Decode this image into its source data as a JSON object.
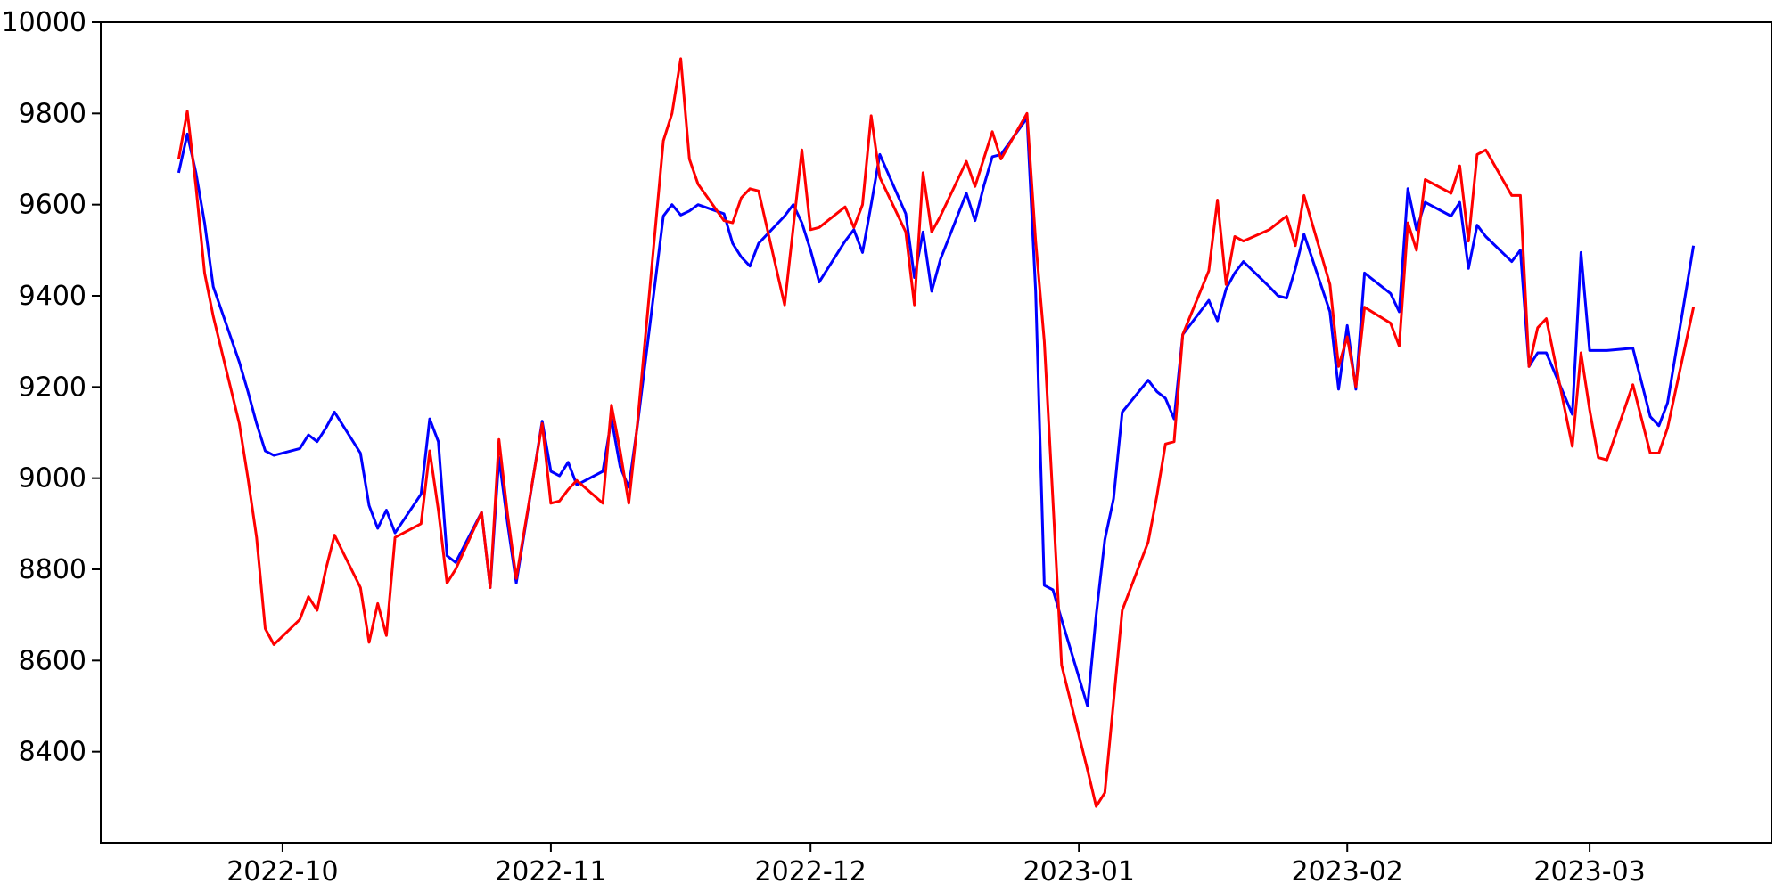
{
  "chart_data": {
    "type": "line",
    "title": "",
    "xlabel": "",
    "ylabel": "",
    "grid": false,
    "legend_position": "none",
    "background_color": "#ffffff",
    "axis_color": "#000000",
    "ylim": [
      8200,
      10000
    ],
    "y_ticks": [
      8400,
      8600,
      8800,
      9000,
      9200,
      9400,
      9600,
      9800,
      10000
    ],
    "xlim": [
      "2022-09-10",
      "2023-03-22"
    ],
    "x_ticks": [
      "2022-10-01",
      "2022-11-01",
      "2022-12-01",
      "2023-01-01",
      "2023-02-01",
      "2023-03-01"
    ],
    "x_tick_labels": [
      "2022-10",
      "2022-11",
      "2022-12",
      "2023-01",
      "2023-02",
      "2023-03"
    ],
    "x": [
      "2022-09-19",
      "2022-09-20",
      "2022-09-21",
      "2022-09-22",
      "2022-09-23",
      "2022-09-26",
      "2022-09-27",
      "2022-09-28",
      "2022-09-29",
      "2022-09-30",
      "2022-10-03",
      "2022-10-04",
      "2022-10-05",
      "2022-10-06",
      "2022-10-07",
      "2022-10-10",
      "2022-10-11",
      "2022-10-12",
      "2022-10-13",
      "2022-10-14",
      "2022-10-17",
      "2022-10-18",
      "2022-10-19",
      "2022-10-20",
      "2022-10-21",
      "2022-10-24",
      "2022-10-25",
      "2022-10-26",
      "2022-10-27",
      "2022-10-28",
      "2022-10-31",
      "2022-11-01",
      "2022-11-02",
      "2022-11-03",
      "2022-11-04",
      "2022-11-07",
      "2022-11-08",
      "2022-11-09",
      "2022-11-10",
      "2022-11-11",
      "2022-11-14",
      "2022-11-15",
      "2022-11-16",
      "2022-11-17",
      "2022-11-18",
      "2022-11-21",
      "2022-11-22",
      "2022-11-23",
      "2022-11-24",
      "2022-11-25",
      "2022-11-28",
      "2022-11-29",
      "2022-11-30",
      "2022-12-01",
      "2022-12-02",
      "2022-12-05",
      "2022-12-06",
      "2022-12-07",
      "2022-12-08",
      "2022-12-09",
      "2022-12-12",
      "2022-12-13",
      "2022-12-14",
      "2022-12-15",
      "2022-12-16",
      "2022-12-19",
      "2022-12-20",
      "2022-12-21",
      "2022-12-22",
      "2022-12-23",
      "2022-12-26",
      "2022-12-27",
      "2022-12-28",
      "2022-12-29",
      "2022-12-30",
      "2023-01-02",
      "2023-01-03",
      "2023-01-04",
      "2023-01-05",
      "2023-01-06",
      "2023-01-09",
      "2023-01-10",
      "2023-01-11",
      "2023-01-12",
      "2023-01-13",
      "2023-01-16",
      "2023-01-17",
      "2023-01-18",
      "2023-01-19",
      "2023-01-20",
      "2023-01-23",
      "2023-01-24",
      "2023-01-25",
      "2023-01-26",
      "2023-01-27",
      "2023-01-30",
      "2023-01-31",
      "2023-02-01",
      "2023-02-02",
      "2023-02-03",
      "2023-02-06",
      "2023-02-07",
      "2023-02-08",
      "2023-02-09",
      "2023-02-10",
      "2023-02-13",
      "2023-02-14",
      "2023-02-15",
      "2023-02-16",
      "2023-02-17",
      "2023-02-20",
      "2023-02-21",
      "2023-02-22",
      "2023-02-23",
      "2023-02-24",
      "2023-02-27",
      "2023-02-28",
      "2023-03-01",
      "2023-03-02",
      "2023-03-03",
      "2023-03-06",
      "2023-03-07",
      "2023-03-08",
      "2023-03-09",
      "2023-03-10",
      "2023-03-13"
    ],
    "series": [
      {
        "name": "series-blue",
        "color": "#0000ff",
        "values": [
          9670,
          9755,
          9670,
          9560,
          9420,
          9255,
          9190,
          9120,
          9060,
          9050,
          9065,
          9095,
          9080,
          9110,
          9145,
          9055,
          8940,
          8890,
          8930,
          8880,
          8965,
          9130,
          9080,
          8830,
          8815,
          8925,
          8760,
          9045,
          8900,
          8770,
          9125,
          9015,
          9005,
          9035,
          8985,
          9015,
          9130,
          9025,
          8980,
          9115,
          9575,
          9600,
          9577,
          9586,
          9600,
          9580,
          9515,
          9485,
          9465,
          9515,
          9575,
          9600,
          9560,
          9500,
          9430,
          9520,
          9545,
          9495,
          9600,
          9710,
          9580,
          9440,
          9540,
          9410,
          9480,
          9625,
          9565,
          9640,
          9705,
          9710,
          9790,
          9410,
          8765,
          8755,
          8690,
          8500,
          8700,
          8865,
          8955,
          9145,
          9215,
          9190,
          9175,
          9130,
          9315,
          9390,
          9345,
          9415,
          9450,
          9475,
          9420,
          9400,
          9395,
          9460,
          9535,
          9365,
          9195,
          9335,
          9195,
          9450,
          9405,
          9365,
          9635,
          9545,
          9605,
          9575,
          9605,
          9460,
          9555,
          9530,
          9475,
          9500,
          9245,
          9275,
          9275,
          9140,
          9495,
          9280,
          9280,
          9280,
          9285,
          9210,
          9135,
          9115,
          9165,
          9510
        ]
      },
      {
        "name": "series-red",
        "color": "#ff0000",
        "values": [
          9700,
          9805,
          9640,
          9450,
          9355,
          9120,
          9000,
          8870,
          8670,
          8635,
          8690,
          8740,
          8710,
          8800,
          8875,
          8760,
          8640,
          8725,
          8655,
          8870,
          8900,
          9060,
          8930,
          8770,
          8800,
          8925,
          8760,
          9085,
          8920,
          8780,
          9120,
          8945,
          8950,
          8975,
          8995,
          8945,
          9160,
          9060,
          8945,
          9120,
          9740,
          9800,
          9920,
          9700,
          9645,
          9565,
          9560,
          9615,
          9635,
          9630,
          9380,
          9550,
          9720,
          9545,
          9550,
          9595,
          9550,
          9600,
          9795,
          9660,
          9540,
          9380,
          9670,
          9540,
          9575,
          9695,
          9640,
          9700,
          9760,
          9700,
          9800,
          9520,
          9300,
          8950,
          8590,
          8360,
          8280,
          8310,
          8510,
          8710,
          8860,
          8960,
          9075,
          9080,
          9315,
          9455,
          9610,
          9425,
          9530,
          9520,
          9545,
          9560,
          9575,
          9510,
          9620,
          9425,
          9245,
          9310,
          9200,
          9375,
          9340,
          9290,
          9560,
          9500,
          9655,
          9625,
          9685,
          9520,
          9710,
          9720,
          9620,
          9620,
          9245,
          9330,
          9350,
          9070,
          9275,
          9150,
          9045,
          9040,
          9205,
          9130,
          9055,
          9055,
          9110,
          9375
        ]
      }
    ]
  }
}
